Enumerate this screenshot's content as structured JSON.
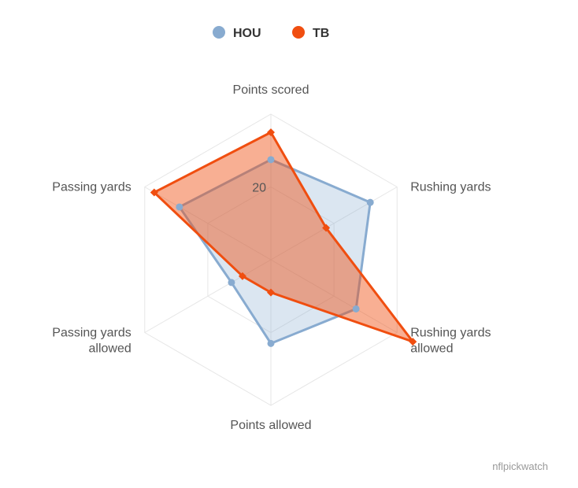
{
  "chart_data": {
    "type": "radar",
    "title": "",
    "axes": [
      "Points scored",
      "Rushing yards",
      "Rushing yards allowed",
      "Points allowed",
      "Passing yards allowed",
      "Passing yards"
    ],
    "axis_label_lines": [
      [
        "Points scored"
      ],
      [
        "Rushing yards"
      ],
      [
        "Rushing yards",
        "allowed"
      ],
      [
        "Points allowed"
      ],
      [
        "Passing yards",
        "allowed"
      ],
      [
        "Passing yards"
      ]
    ],
    "range": [
      0,
      40
    ],
    "tick_values": [
      20
    ],
    "tick_labels": [
      "20"
    ],
    "grid_levels": 2,
    "legend_position": "top-center",
    "series": [
      {
        "name": "HOU",
        "color": "#88abd0",
        "marker": "circle",
        "values": [
          27.5,
          31.5,
          27,
          23,
          12.5,
          29
        ]
      },
      {
        "name": "TB",
        "color": "#f04e10",
        "marker": "diamond",
        "values": [
          35,
          17.5,
          45,
          9,
          9,
          37
        ]
      }
    ]
  },
  "credit": "nflpickwatch"
}
